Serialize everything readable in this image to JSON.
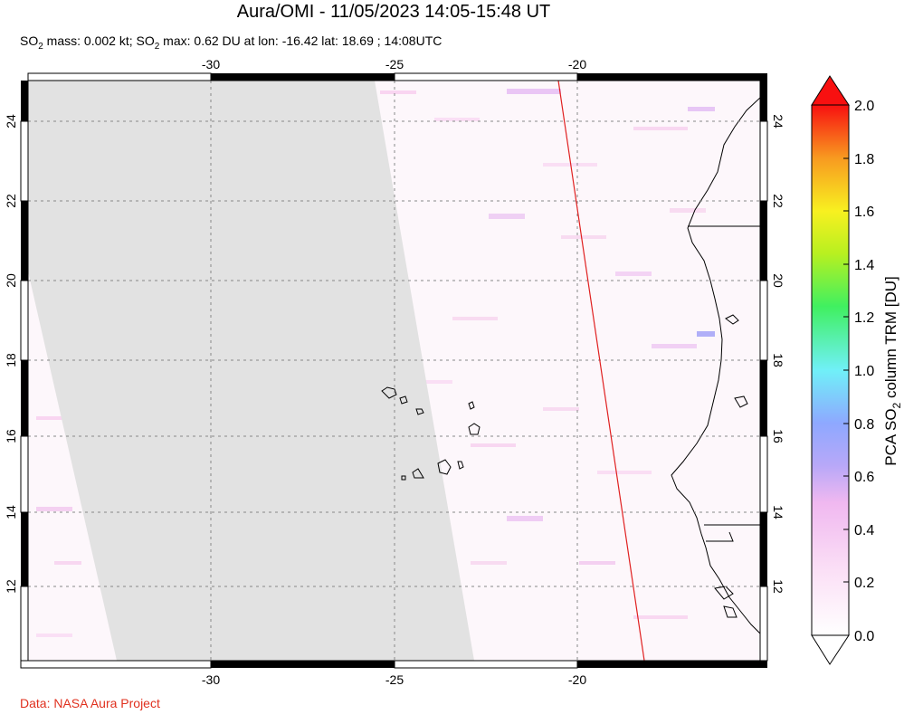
{
  "title": "Aura/OMI - 11/05/2023 14:05-15:48 UT",
  "subtitle": {
    "prefix": "SO",
    "sub1": "2",
    "mid": " mass: 0.002 kt; SO",
    "sub2": "2",
    "rest": " max: 0.62 DU at lon: -16.42 lat: 18.69 ; 14:08UTC"
  },
  "credit": "Data: NASA Aura Project",
  "map": {
    "lon_range": [
      -35,
      -15
    ],
    "lat_range": [
      10,
      25
    ],
    "lon_ticks": [
      "-30",
      "-25",
      "-20"
    ],
    "lat_ticks": [
      "24",
      "22",
      "20",
      "18",
      "16",
      "14",
      "12"
    ],
    "swath_line_color": "#e02020",
    "no_data_color": "#e0e0e0"
  },
  "colorbar": {
    "label_prefix": "PCA SO",
    "label_sub": "2",
    "label_suffix": " column TRM [DU]",
    "ticks": [
      "2.0",
      "1.8",
      "1.6",
      "1.4",
      "1.2",
      "1.0",
      "0.8",
      "0.6",
      "0.4",
      "0.2",
      "0.0"
    ],
    "stops": [
      "#ffffff",
      "#f8c8f0",
      "#c8a0f0",
      "#8c9cff",
      "#60f0f8",
      "#40f060",
      "#f0f020",
      "#f89020",
      "#f81010"
    ]
  }
}
